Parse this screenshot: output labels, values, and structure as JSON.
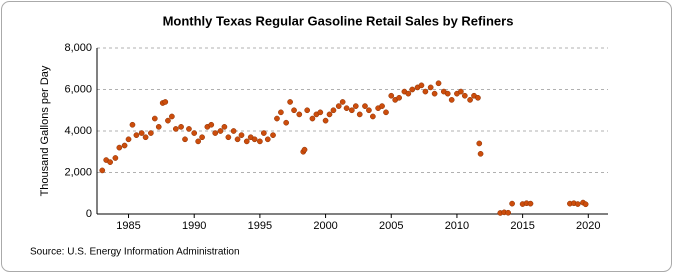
{
  "chart_data": {
    "type": "scatter",
    "title": "Monthly Texas Regular Gasoline Retail Sales by Refiners",
    "y_label": "Thousand Gallons per Day",
    "source": "Source: U.S. Energy Information Administration",
    "color": "#cc4d0c",
    "grid": true,
    "xlim": [
      1982.6,
      2021.5
    ],
    "xticks": [
      1985,
      1990,
      1995,
      2000,
      2005,
      2010,
      2015,
      2020
    ],
    "ylim": [
      0,
      8000
    ],
    "yticks": [
      0,
      {
        "value": 2000,
        "label": "2,000"
      },
      {
        "value": 4000,
        "label": "4,000"
      },
      {
        "value": 6000,
        "label": "6,000"
      },
      {
        "value": 8000,
        "label": "8,000"
      }
    ],
    "x": [
      1983.0,
      1983.3,
      1983.6,
      1984.0,
      1984.3,
      1984.7,
      1985.0,
      1985.3,
      1985.6,
      1986.0,
      1986.3,
      1986.7,
      1987.0,
      1987.3,
      1987.6,
      1987.8,
      1988.0,
      1988.3,
      1988.6,
      1989.0,
      1989.3,
      1989.6,
      1990.0,
      1990.3,
      1990.6,
      1991.0,
      1991.3,
      1991.6,
      1992.0,
      1992.3,
      1992.6,
      1993.0,
      1993.3,
      1993.6,
      1994.0,
      1994.3,
      1994.6,
      1995.0,
      1995.3,
      1995.6,
      1996.0,
      1996.3,
      1996.6,
      1997.0,
      1997.3,
      1997.6,
      1998.0,
      1998.3,
      1998.4,
      1998.6,
      1999.0,
      1999.3,
      1999.6,
      2000.0,
      2000.3,
      2000.6,
      2001.0,
      2001.3,
      2001.6,
      2002.0,
      2002.3,
      2002.6,
      2003.0,
      2003.3,
      2003.6,
      2004.0,
      2004.3,
      2004.6,
      2005.0,
      2005.3,
      2005.6,
      2006.0,
      2006.3,
      2006.6,
      2007.0,
      2007.3,
      2007.6,
      2008.0,
      2008.3,
      2008.6,
      2009.0,
      2009.3,
      2009.6,
      2010.0,
      2010.3,
      2010.6,
      2011.0,
      2011.3,
      2011.6,
      2011.7,
      2011.8,
      2013.3,
      2013.6,
      2013.9,
      2014.2,
      2015.0,
      2015.3,
      2015.6,
      2018.6,
      2018.9,
      2019.2,
      2019.6,
      2019.8
    ],
    "values": [
      2100,
      2600,
      2500,
      2700,
      3200,
      3300,
      3600,
      4300,
      3800,
      3900,
      3700,
      3900,
      4600,
      4200,
      5350,
      5400,
      4500,
      4700,
      4100,
      4200,
      3600,
      4100,
      3900,
      3500,
      3700,
      4200,
      4300,
      3900,
      4000,
      4200,
      3700,
      4000,
      3600,
      3800,
      3500,
      3700,
      3600,
      3500,
      3900,
      3600,
      3800,
      4600,
      4900,
      4400,
      5400,
      5000,
      4800,
      3000,
      3100,
      5000,
      4600,
      4800,
      4900,
      4500,
      4800,
      5000,
      5200,
      5400,
      5100,
      5000,
      5200,
      4800,
      5200,
      5000,
      4700,
      5100,
      5200,
      4900,
      5700,
      5500,
      5600,
      5900,
      5800,
      6000,
      6100,
      6200,
      5900,
      6100,
      5800,
      6300,
      5900,
      5800,
      5500,
      5800,
      5900,
      5700,
      5500,
      5700,
      5600,
      3400,
      2900,
      50,
      80,
      60,
      500,
      480,
      520,
      500,
      500,
      520,
      480,
      550,
      470
    ]
  }
}
